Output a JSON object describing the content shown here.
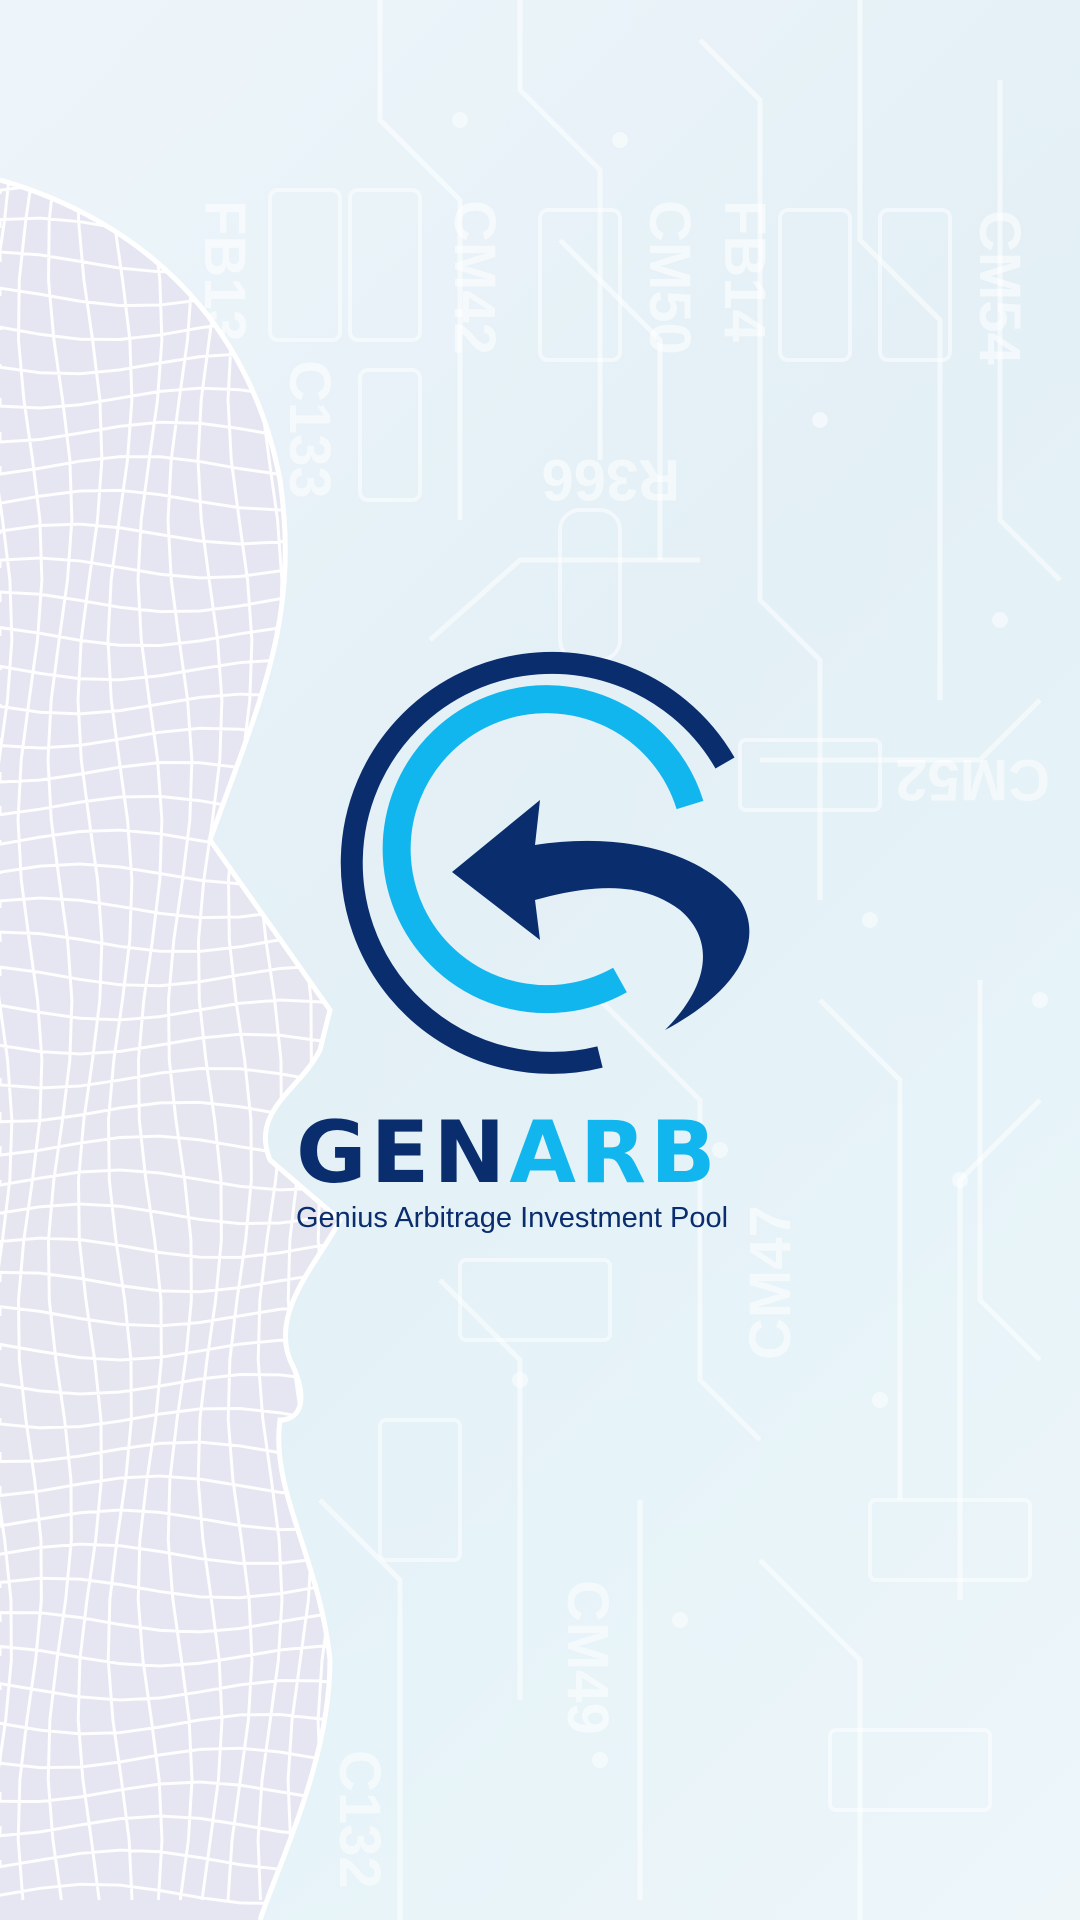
{
  "brand": {
    "name_part_a": "GEN",
    "name_part_b": "ARB",
    "tagline": "Genius Arbitrage Investment Pool"
  },
  "background": {
    "board_labels": [
      "FB13",
      "CM42",
      "CM50",
      "FB14",
      "CM54",
      "C133",
      "R366",
      "CM52",
      "CM47",
      "CM49",
      "C132"
    ]
  },
  "colors": {
    "navy": "#0a2d6e",
    "cyan": "#12b6ee",
    "background": "#e6f1f7"
  },
  "icons": {
    "logo": "circular-arrow-logo-icon",
    "decoration": "wireframe-face-icon"
  }
}
